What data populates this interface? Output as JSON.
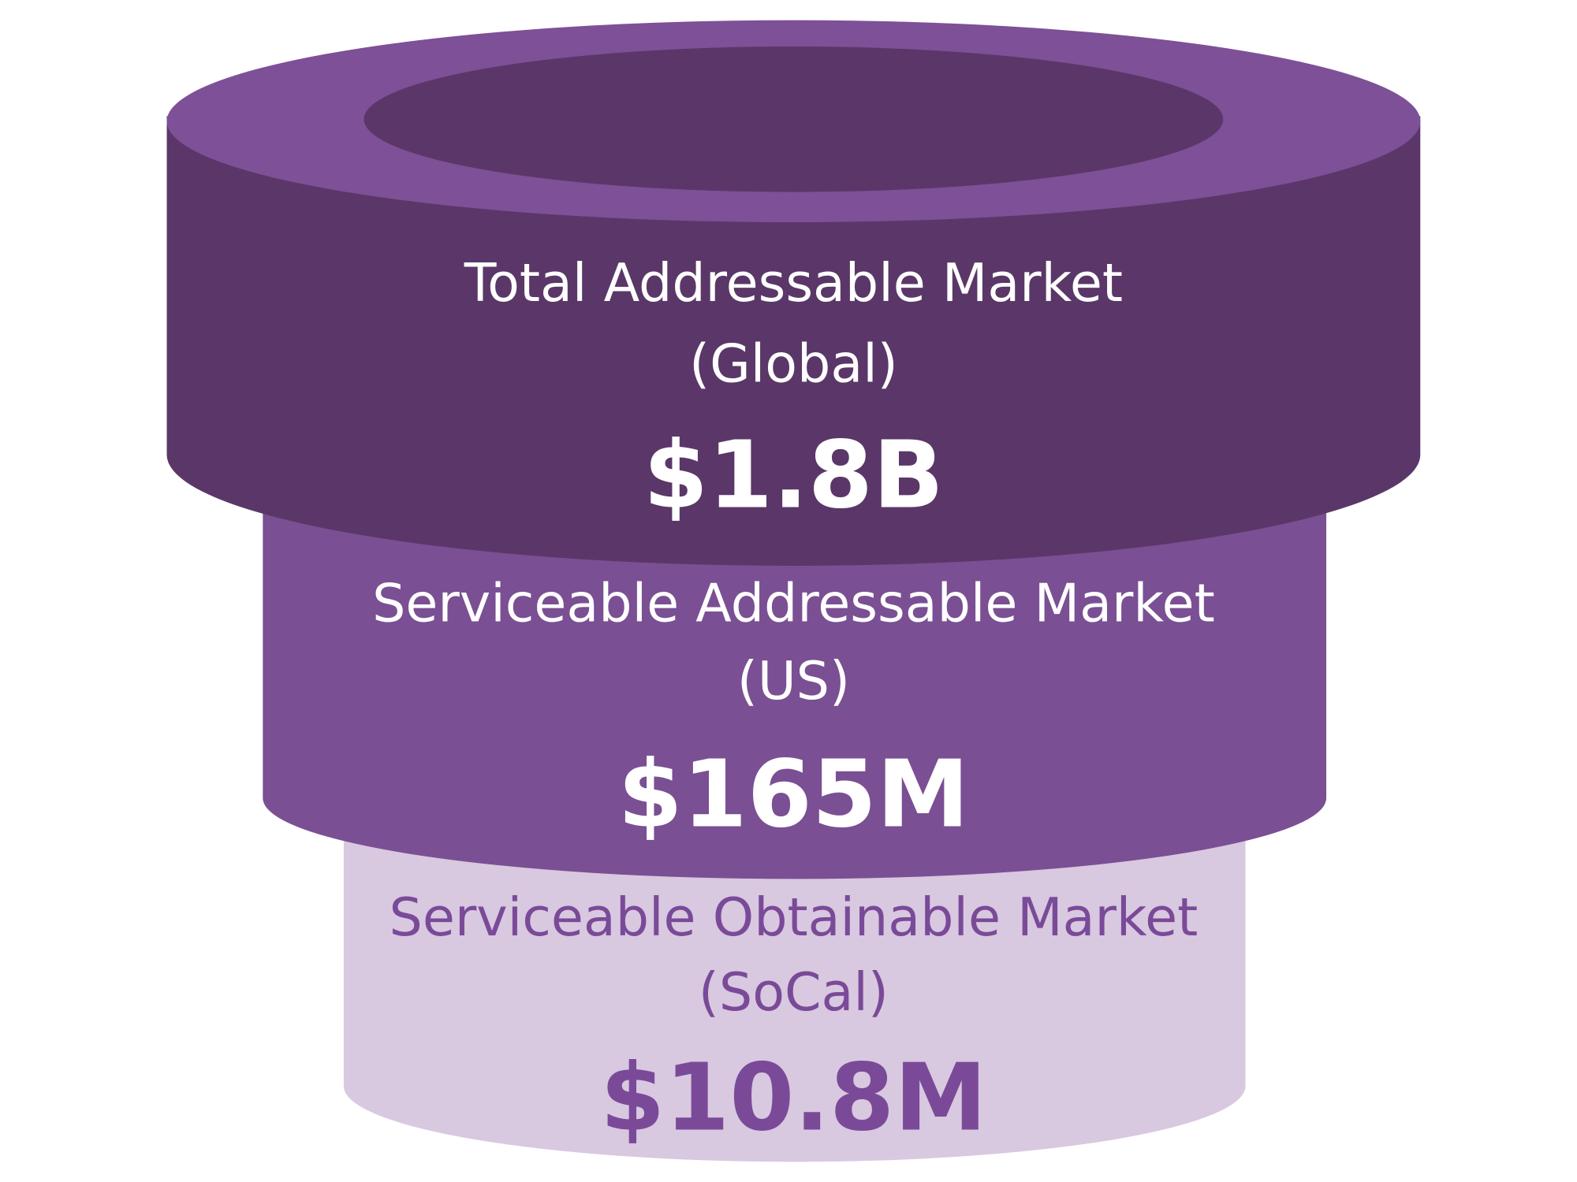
{
  "tiers": [
    {
      "label": "Total Addressable Market",
      "scope": "(Global)",
      "value": "$1.8B"
    },
    {
      "label": "Serviceable Addressable Market",
      "scope": "(US)",
      "value": "$165M"
    },
    {
      "label": "Serviceable Obtainable Market",
      "scope": "(SoCal)",
      "value": "$10.8M"
    }
  ]
}
